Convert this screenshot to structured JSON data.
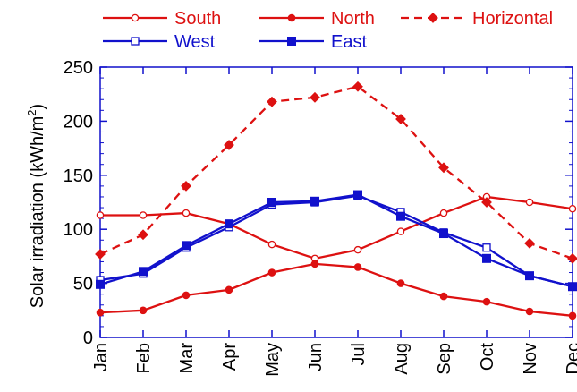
{
  "chart_data": {
    "type": "line",
    "categories": [
      "Jan",
      "Feb",
      "Mar",
      "Apr",
      "May",
      "Jun",
      "Jul",
      "Aug",
      "Sep",
      "Oct",
      "Nov",
      "Dec"
    ],
    "ylabel": "Solar irradiation (kWh/m²)",
    "ylabel_main": "Solar irradiation (kWh/m",
    "ylabel_sup": "2",
    "ylabel_close": ")",
    "ylim": [
      0,
      250
    ],
    "yticks": [
      0,
      50,
      100,
      150,
      200,
      250
    ],
    "ytick_labels": [
      "0",
      "50",
      "100",
      "150",
      "200",
      "250"
    ],
    "grid": false,
    "legend_position": "top",
    "series": [
      {
        "name": "South",
        "color": "#dd1111",
        "marker": "open-circle",
        "dash": "solid",
        "values": [
          113,
          113,
          115,
          105,
          86,
          73,
          81,
          98,
          115,
          130,
          125,
          119
        ]
      },
      {
        "name": "North",
        "color": "#dd1111",
        "marker": "filled-circle",
        "dash": "solid",
        "values": [
          23,
          25,
          39,
          44,
          60,
          68,
          65,
          50,
          38,
          33,
          24,
          20
        ]
      },
      {
        "name": "Horizontal",
        "color": "#dd1111",
        "marker": "filled-diamond",
        "dash": "dashed",
        "values": [
          77,
          95,
          140,
          178,
          218,
          222,
          232,
          202,
          157,
          125,
          87,
          73
        ]
      },
      {
        "name": "West",
        "color": "#1111cc",
        "marker": "open-square",
        "dash": "solid",
        "values": [
          53,
          59,
          83,
          102,
          123,
          125,
          131,
          116,
          97,
          83,
          57,
          47
        ]
      },
      {
        "name": "East",
        "color": "#1111cc",
        "marker": "filled-square",
        "dash": "solid",
        "values": [
          49,
          61,
          85,
          105,
          125,
          126,
          132,
          112,
          96,
          73,
          57,
          47
        ]
      }
    ]
  }
}
